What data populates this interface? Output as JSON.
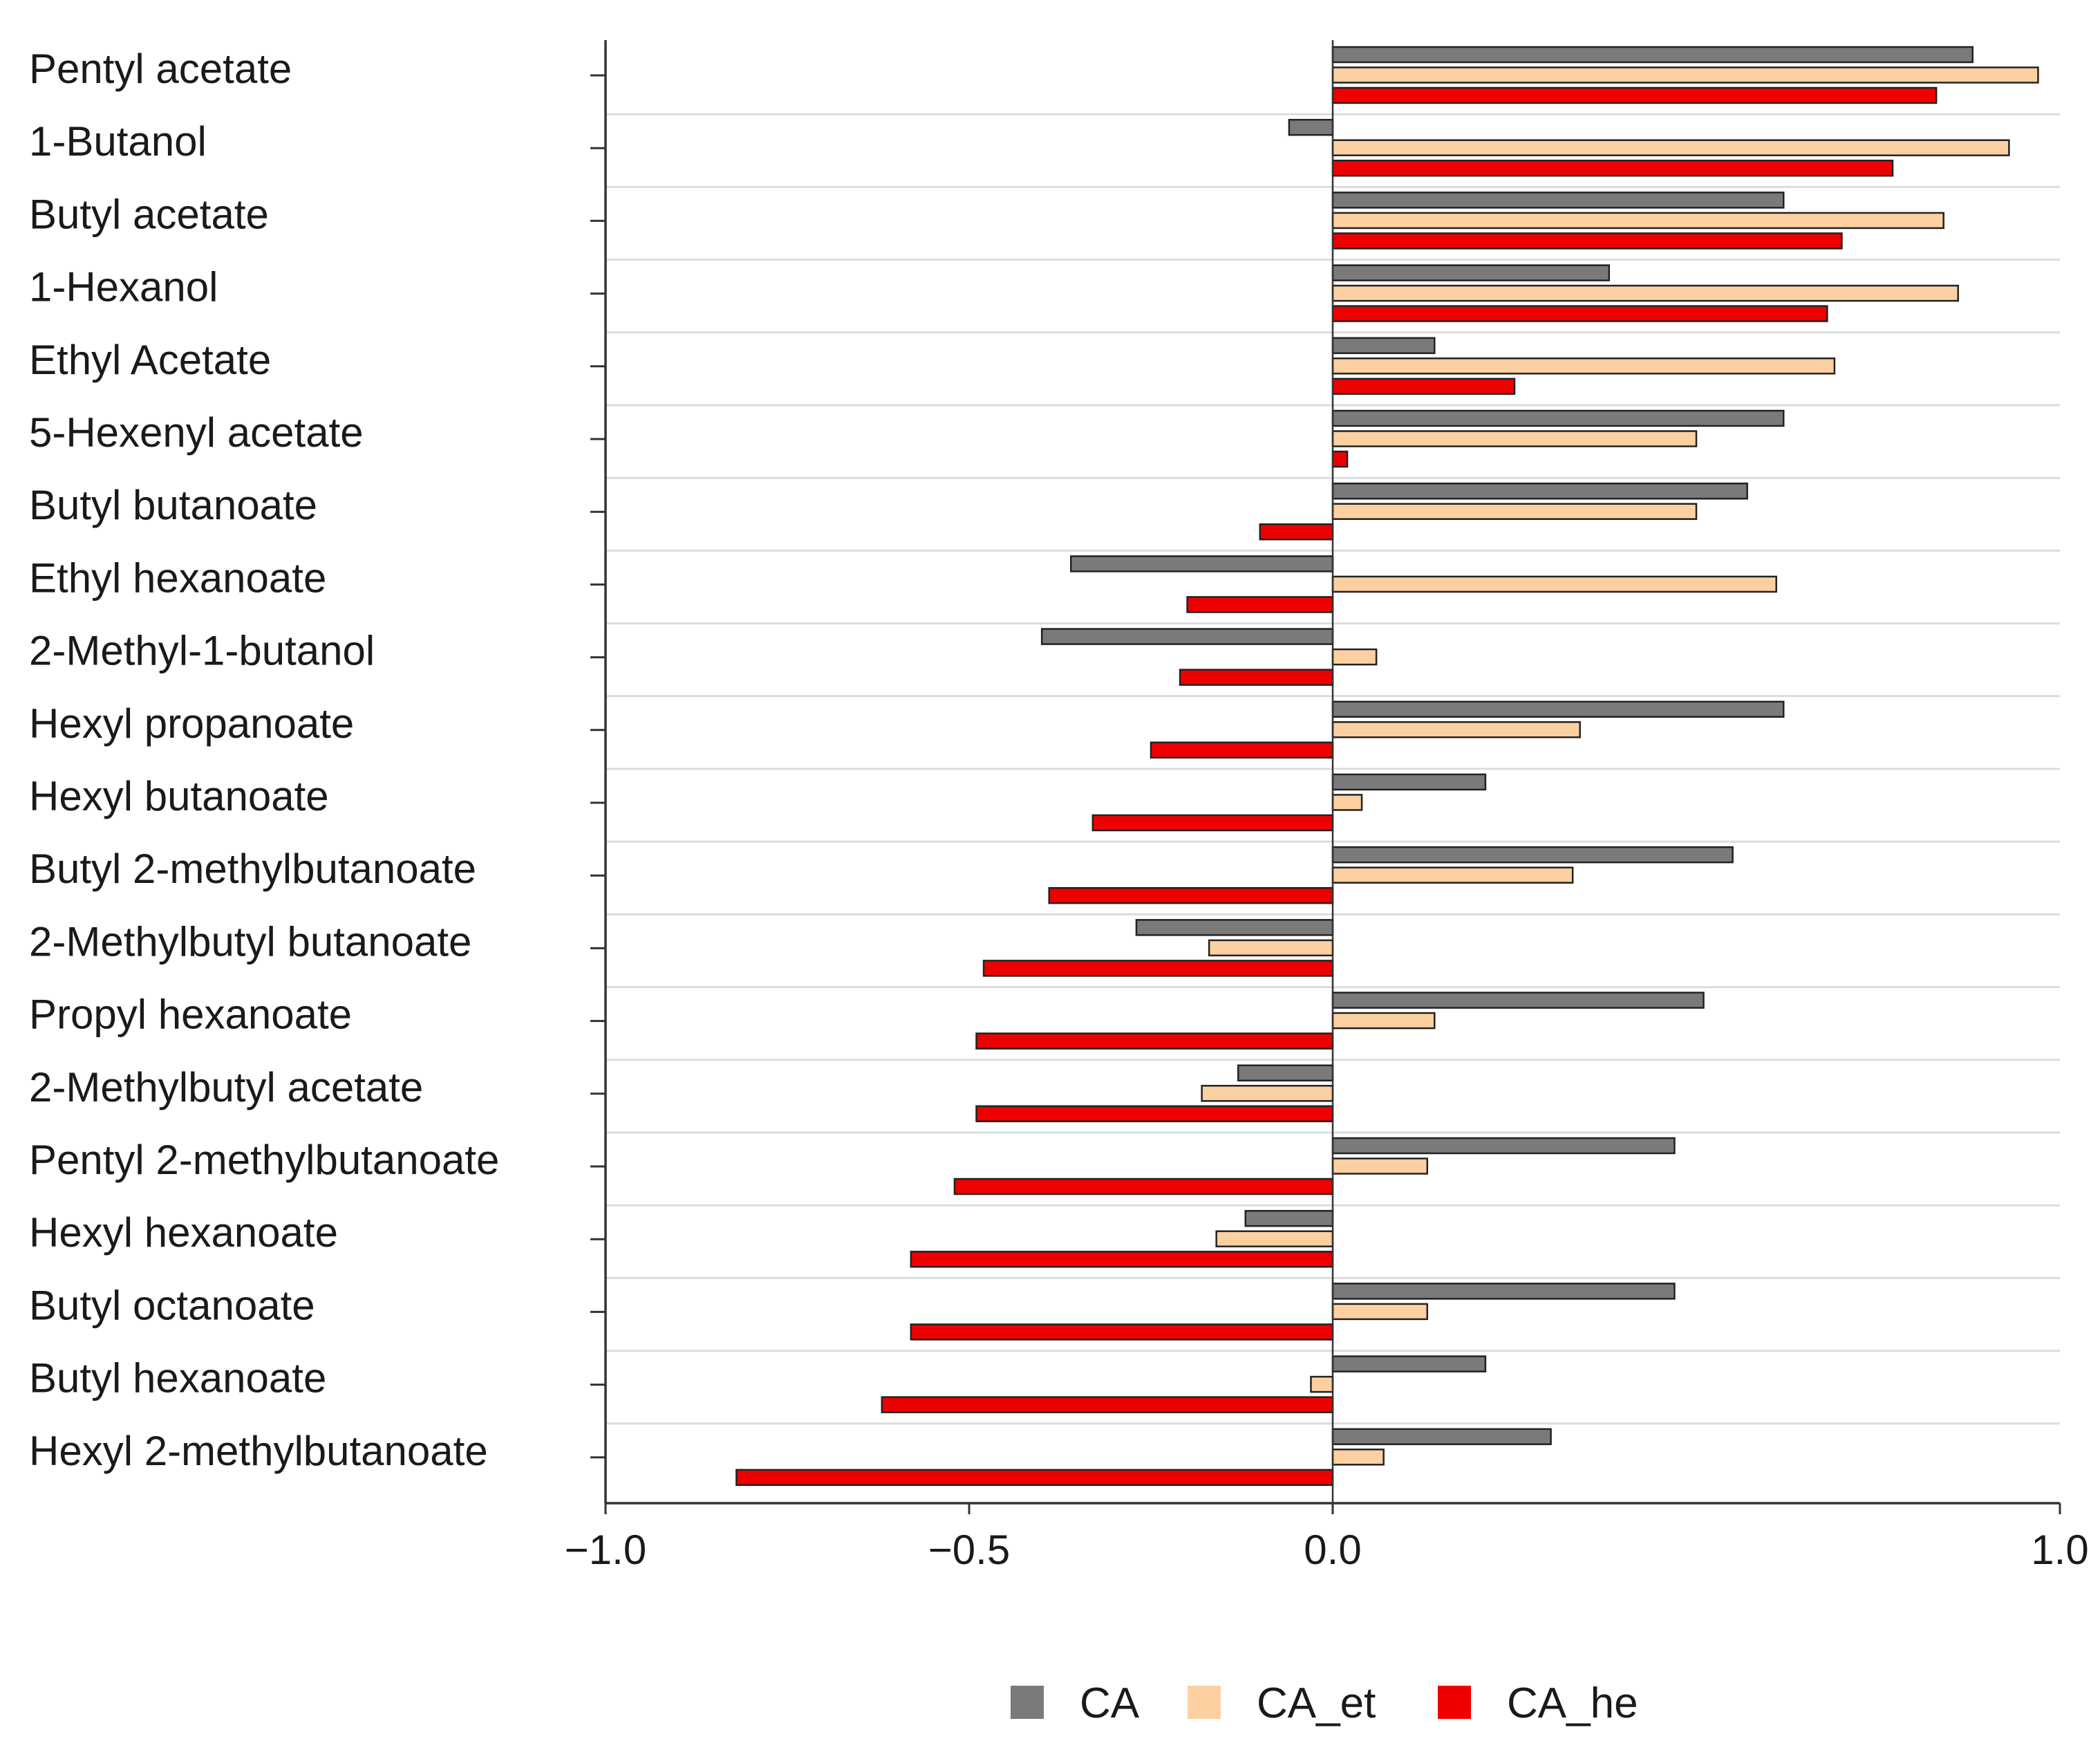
{
  "chart_data": {
    "type": "bar",
    "orientation": "horizontal",
    "title": "",
    "xlabel": "",
    "ylabel": "",
    "xlim": [
      -1.0,
      1.0
    ],
    "xticks": [
      -1.0,
      -0.5,
      0.0,
      1.0
    ],
    "xtick_labels": [
      "−1.0",
      "−0.5",
      "0.0",
      "1.0"
    ],
    "grid": "horizontal",
    "legend_position": "bottom",
    "categories": [
      "Pentyl acetate",
      "1-Butanol",
      "Butyl acetate",
      "1-Hexanol",
      "Ethyl Acetate",
      "5-Hexenyl acetate",
      "Butyl butanoate",
      "Ethyl hexanoate",
      "2-Methyl-1-butanol",
      "Hexyl propanoate",
      "Hexyl butanoate",
      "Butyl 2-methylbutanoate",
      "2-Methylbutyl butanoate",
      "Propyl hexanoate",
      "2-Methylbutyl acetate",
      "Pentyl 2-methylbutanoate",
      "Hexyl hexanoate",
      "Butyl octanoate",
      "Butyl hexanoate",
      "Hexyl 2-methylbutanoate"
    ],
    "series": [
      {
        "name": "CA",
        "color": "#7a7a7a",
        "values": [
          0.88,
          -0.06,
          0.62,
          0.38,
          0.14,
          0.62,
          0.57,
          -0.36,
          -0.4,
          0.62,
          0.21,
          0.55,
          -0.27,
          0.51,
          -0.13,
          0.47,
          -0.12,
          0.47,
          0.21,
          0.3
        ]
      },
      {
        "name": "CA_et",
        "color": "#fdd0a2",
        "values": [
          0.97,
          0.93,
          0.84,
          0.86,
          0.69,
          0.5,
          0.5,
          0.61,
          0.06,
          0.34,
          0.04,
          0.33,
          -0.17,
          0.14,
          -0.18,
          0.13,
          -0.16,
          0.13,
          -0.03,
          0.07
        ]
      },
      {
        "name": "CA_he",
        "color": "#ee0000",
        "values": [
          0.83,
          0.77,
          0.7,
          0.68,
          0.25,
          0.02,
          -0.1,
          -0.2,
          -0.21,
          -0.25,
          -0.33,
          -0.39,
          -0.48,
          -0.49,
          -0.49,
          -0.52,
          -0.58,
          -0.58,
          -0.62,
          -0.82
        ]
      }
    ]
  }
}
